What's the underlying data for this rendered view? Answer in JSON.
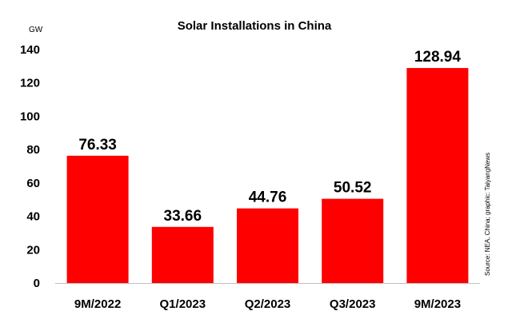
{
  "chart_data": {
    "type": "bar",
    "title": "Solar Installations in China",
    "unit_label": "GW",
    "categories": [
      "9M/2022",
      "Q1/2023",
      "Q2/2023",
      "Q3/2023",
      "9M/2023"
    ],
    "values": [
      76.33,
      33.66,
      44.76,
      50.52,
      128.94
    ],
    "data_labels": [
      "76.33",
      "33.66",
      "44.76",
      "50.52",
      "128.94"
    ],
    "ylim": [
      0,
      140
    ],
    "yticks": [
      0,
      20,
      40,
      60,
      80,
      100,
      120,
      140
    ],
    "bar_color": "#ff0000",
    "grid": false,
    "legend": "none",
    "source_note": "Source: NEA, China; graphic: TaiyangNews"
  }
}
